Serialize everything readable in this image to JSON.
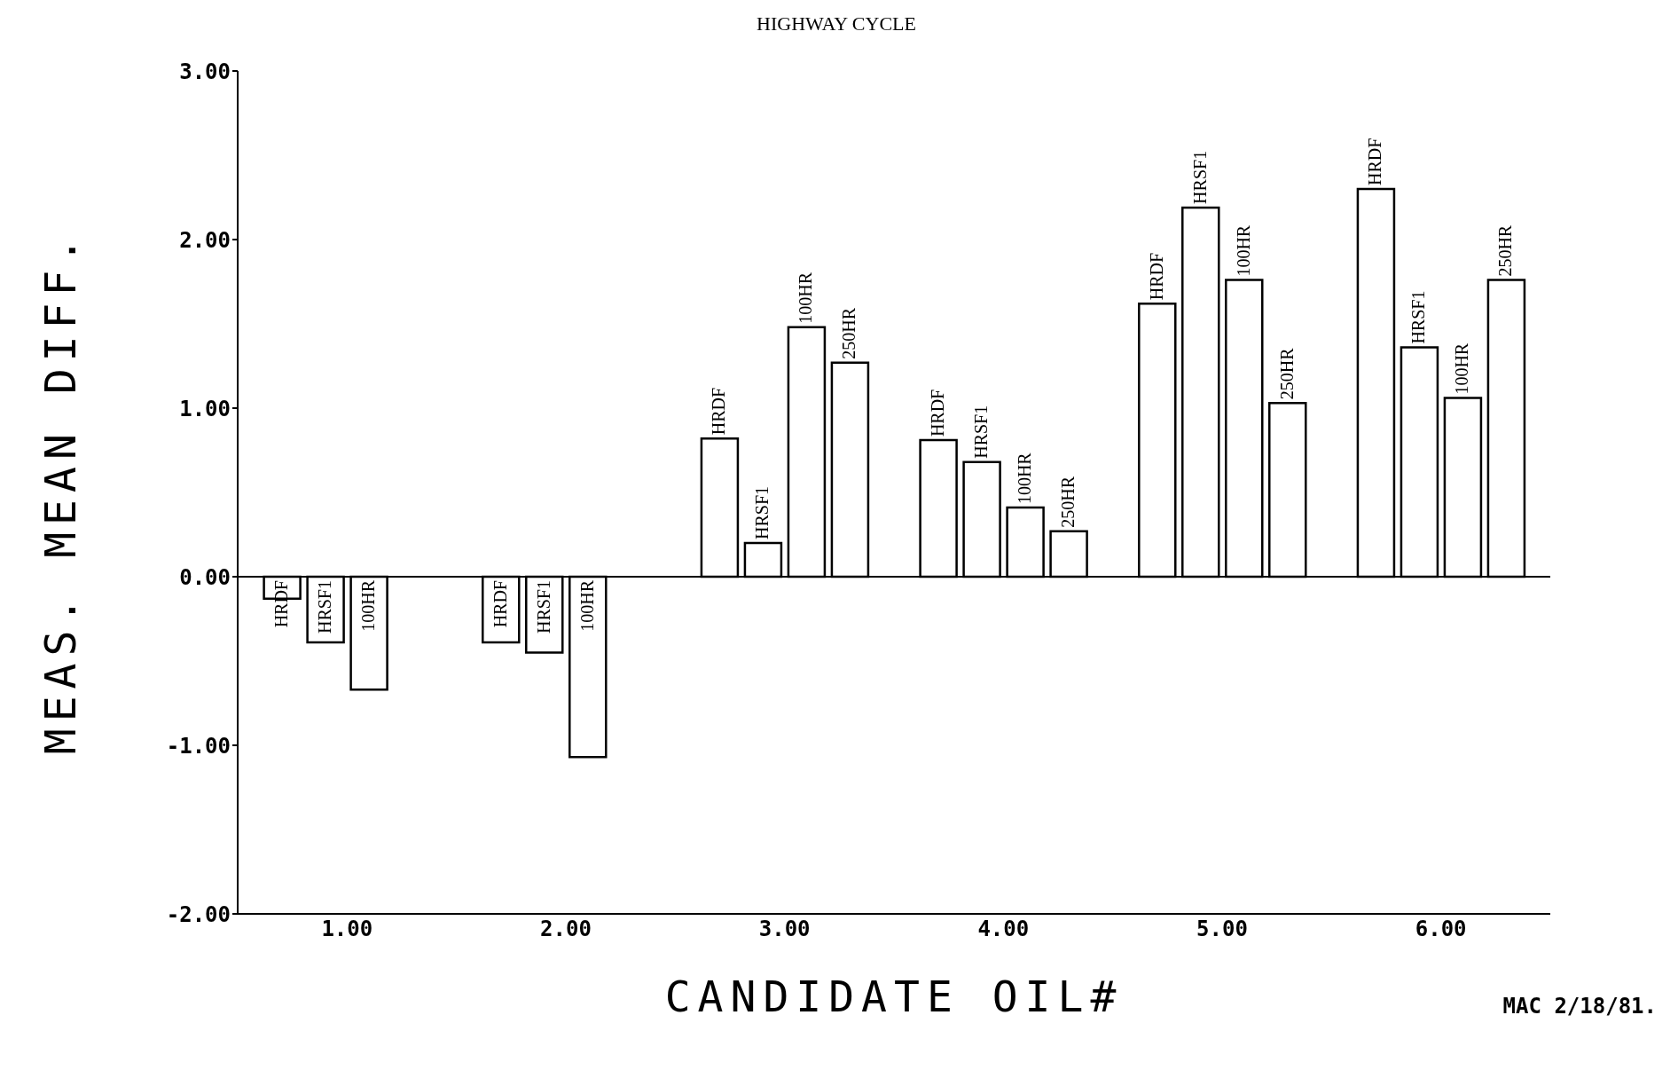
{
  "chart_data": {
    "type": "bar",
    "title": "HIGHWAY CYCLE",
    "xlabel": "CANDIDATE OIL#",
    "ylabel": "MEAS. MEAN DIFF.",
    "annotations": [
      "MAC 2/18/81."
    ],
    "categories": [
      "1.00",
      "2.00",
      "3.00",
      "4.00",
      "5.00",
      "6.00"
    ],
    "series": [
      {
        "name": "HRDF",
        "color": "#ffffff",
        "values": [
          -0.13,
          -0.39,
          0.82,
          0.81,
          1.62,
          2.3
        ]
      },
      {
        "name": "HRSF1",
        "color": "#ffffff",
        "values": [
          -0.39,
          -0.45,
          0.2,
          0.68,
          2.19,
          1.36
        ]
      },
      {
        "name": "100HR",
        "color": "#ffffff",
        "values": [
          -0.67,
          -1.07,
          1.48,
          0.41,
          1.76,
          1.06
        ]
      },
      {
        "name": "250HR",
        "color": "#ffffff",
        "values": [
          null,
          null,
          1.27,
          0.27,
          1.03,
          1.76
        ]
      }
    ],
    "ylim": [
      -2,
      3
    ],
    "yticks": [
      {
        "value": -2,
        "label": "-2.00"
      },
      {
        "value": -1,
        "label": "-1.00"
      },
      {
        "value": 0,
        "label": "0.00"
      },
      {
        "value": 1,
        "label": "1.00"
      },
      {
        "value": 2,
        "label": "2.00"
      },
      {
        "value": 3,
        "label": "3.00"
      }
    ],
    "ref_lines": [
      {
        "axis": "y",
        "value": 0
      }
    ],
    "grid": false,
    "legend": false
  }
}
